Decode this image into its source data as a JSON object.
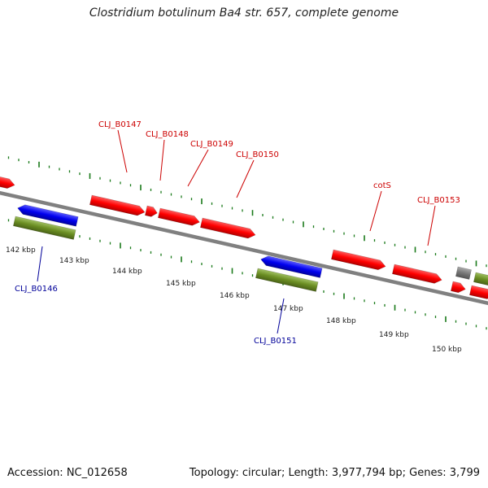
{
  "title": "Clostridium botulinum Ba4 str. 657, complete genome",
  "footer": {
    "accession": "Accession: NC_012658",
    "summary": "Topology: circular; Length: 3,977,794 bp; Genes: 3,799"
  },
  "colors": {
    "forward": "#ff0000",
    "reverse": "#0000ee",
    "rrna": "#6b8e23",
    "other": "#777777",
    "backbone": "#808080",
    "ticks": "#1a7a1a",
    "label_forward": "#cc0000",
    "label_reverse": "#000099"
  },
  "ruler": {
    "kbp_labels": [
      "142 kbp",
      "143 kbp",
      "144 kbp",
      "145 kbp",
      "146 kbp",
      "147 kbp",
      "148 kbp",
      "149 kbp",
      "150 kbp"
    ]
  },
  "genes": [
    {
      "label": "CLJ_B0146",
      "strand": "reverse"
    },
    {
      "label": "CLJ_B0147",
      "strand": "forward"
    },
    {
      "label": "CLJ_B0148",
      "strand": "forward"
    },
    {
      "label": "CLJ_B0149",
      "strand": "forward"
    },
    {
      "label": "CLJ_B0150",
      "strand": "forward"
    },
    {
      "label": "CLJ_B0151",
      "strand": "reverse"
    },
    {
      "label": "cotS",
      "strand": "forward"
    },
    {
      "label": "CLJ_B0153",
      "strand": "forward"
    }
  ]
}
